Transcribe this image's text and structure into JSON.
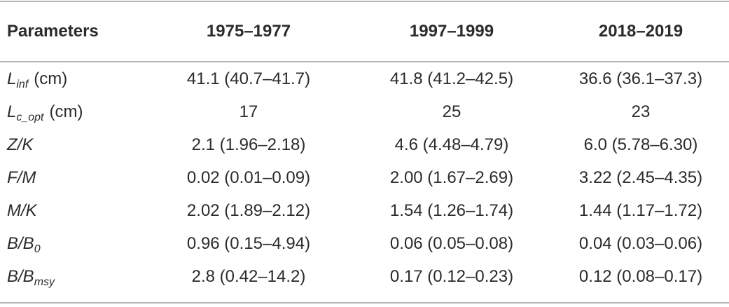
{
  "table": {
    "header": [
      "Parameters",
      "1975–1977",
      "1997–1999",
      "2018–2019"
    ],
    "rows": [
      {
        "label": {
          "main": "L",
          "sub": "inf",
          "unit": "(cm)"
        },
        "cells": [
          "41.1 (40.7–41.7)",
          "41.8 (41.2–42.5)",
          "36.6 (36.1–37.3)"
        ]
      },
      {
        "label": {
          "main": "L",
          "sub": "c_opt",
          "unit": "(cm)"
        },
        "cells": [
          "17",
          "25",
          "23"
        ]
      },
      {
        "label": {
          "main": "Z/K"
        },
        "cells": [
          "2.1 (1.96–2.18)",
          "4.6 (4.48–4.79)",
          "6.0 (5.78–6.30)"
        ]
      },
      {
        "label": {
          "main": "F/M"
        },
        "cells": [
          "0.02 (0.01–0.09)",
          "2.00 (1.67–2.69)",
          "3.22 (2.45–4.35)"
        ]
      },
      {
        "label": {
          "main": "M/K"
        },
        "cells": [
          "2.02 (1.89–2.12)",
          "1.54 (1.26–1.74)",
          "1.44 (1.17–1.72)"
        ]
      },
      {
        "label": {
          "main": "B/B",
          "sub": "0"
        },
        "cells": [
          "0.96 (0.15–4.94)",
          "0.06 (0.05–0.08)",
          "0.04 (0.03–0.06)"
        ]
      },
      {
        "label": {
          "main": "B/B",
          "sub": "msy"
        },
        "cells": [
          "2.8 (0.42–14.2)",
          "0.17 (0.12–0.23)",
          "0.12 (0.08–0.17)"
        ]
      }
    ]
  }
}
